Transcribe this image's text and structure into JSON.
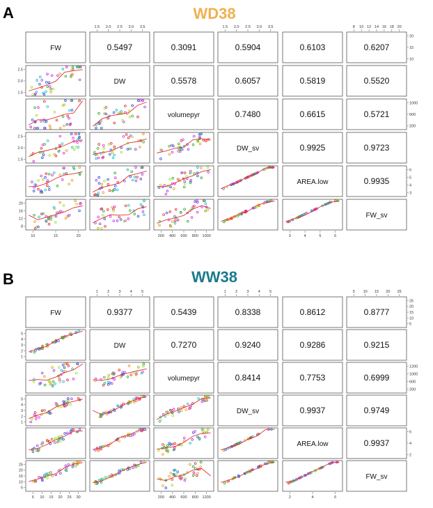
{
  "panels": [
    {
      "letter": "A",
      "title": "WD38",
      "title_color": "#f0b050",
      "chart_data": {
        "type": "scatter",
        "variables": [
          "FW",
          "DW",
          "volumepyr",
          "DW_sv",
          "AREA.low",
          "FW_sv"
        ],
        "correlations": [
          [
            "",
            "0.5497",
            "0.3091",
            "0.5904",
            "0.6103",
            "0.6207"
          ],
          [
            "",
            "",
            "0.5578",
            "0.6057",
            "0.5819",
            "0.5520"
          ],
          [
            "",
            "",
            "",
            "0.7480",
            "0.6615",
            "0.5721"
          ],
          [
            "",
            "",
            "",
            "",
            "0.9925",
            "0.9723"
          ],
          [
            "",
            "",
            "",
            "",
            "",
            "0.9935"
          ]
        ],
        "top_ticks": [
          null,
          [
            "1.5",
            "2.0",
            "2.5",
            "3.0",
            "3.5"
          ],
          null,
          [
            "1.5",
            "2.0",
            "2.5",
            "3.0",
            "3.5"
          ],
          null,
          [
            "8",
            "10",
            "12",
            "14",
            "16",
            "18",
            "20"
          ]
        ],
        "bottom_ticks": [
          [
            "10",
            "15",
            "20"
          ],
          null,
          [
            "200",
            "400",
            "600",
            "800",
            "1000"
          ],
          null,
          [
            "3",
            "4",
            "5",
            "6"
          ],
          null
        ],
        "left_ticks": [
          null,
          [
            "1.5",
            "2.0",
            "2.5"
          ],
          null,
          [
            "1.5",
            "2.0",
            "2.5"
          ],
          null,
          [
            "8",
            "12",
            "16",
            "20"
          ]
        ],
        "right_ticks": [
          [
            "10",
            "15",
            "20"
          ],
          null,
          [
            "200",
            "600",
            "1000"
          ],
          null,
          [
            "3",
            "4",
            "5",
            "6"
          ],
          null
        ]
      }
    },
    {
      "letter": "B",
      "title": "WW38",
      "title_color": "#1a7a8c",
      "chart_data": {
        "type": "scatter",
        "variables": [
          "FW",
          "DW",
          "volumepyr",
          "DW_sv",
          "AREA.low",
          "FW_sv"
        ],
        "correlations": [
          [
            "",
            "0.9377",
            "0.5439",
            "0.8338",
            "0.8612",
            "0.8777"
          ],
          [
            "",
            "",
            "0.7270",
            "0.9240",
            "0.9286",
            "0.9215"
          ],
          [
            "",
            "",
            "",
            "0.8414",
            "0.7753",
            "0.6999"
          ],
          [
            "",
            "",
            "",
            "",
            "0.9937",
            "0.9749"
          ],
          [
            "",
            "",
            "",
            "",
            "",
            "0.9937"
          ]
        ],
        "top_ticks": [
          null,
          [
            "1",
            "2",
            "3",
            "4",
            "5"
          ],
          null,
          [
            "1",
            "2",
            "3",
            "4",
            "5"
          ],
          null,
          [
            "5",
            "10",
            "15",
            "20",
            "25"
          ]
        ],
        "bottom_ticks": [
          [
            "5",
            "10",
            "15",
            "20",
            "25",
            "30"
          ],
          null,
          [
            "200",
            "400",
            "600",
            "800",
            "1200"
          ],
          null,
          [
            "2",
            "4",
            "6"
          ],
          null
        ],
        "left_ticks": [
          null,
          [
            "1",
            "2",
            "3",
            "4",
            "5"
          ],
          null,
          [
            "1",
            "2",
            "3",
            "4",
            "5"
          ],
          null,
          [
            "5",
            "10",
            "15",
            "20",
            "25"
          ]
        ],
        "right_ticks": [
          [
            "5",
            "10",
            "15",
            "20",
            "25"
          ],
          null,
          [
            "200",
            "600",
            "1000",
            "1200"
          ],
          null,
          [
            "2",
            "4",
            "6"
          ],
          null
        ]
      }
    }
  ],
  "colors": {
    "smooth_line": "#e0302a",
    "point_palette": [
      "#e03030",
      "#30b030",
      "#3050e0",
      "#e030e0",
      "#20c0c0",
      "#e0a020",
      "#a0e030",
      "#a040e0"
    ]
  }
}
